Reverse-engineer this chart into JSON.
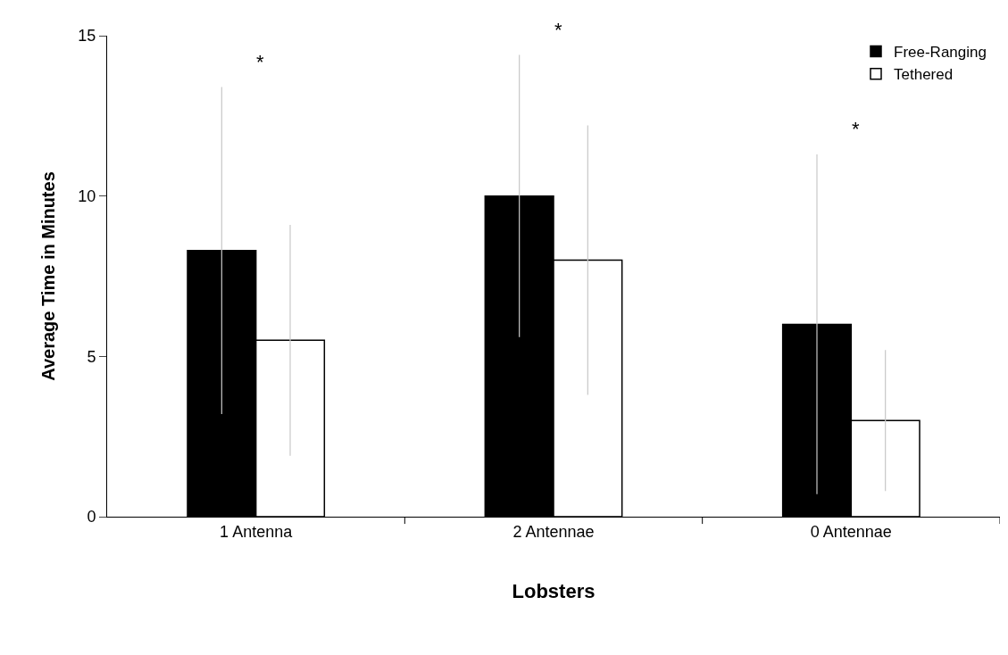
{
  "chart_data": {
    "type": "bar",
    "xlabel": "Lobsters",
    "ylabel": "Average Time in Minutes",
    "categories": [
      "1 Antenna",
      "2 Antennae",
      "0 Antennae"
    ],
    "series": [
      {
        "name": "Free-Ranging",
        "color": "#000000",
        "values": [
          8.3,
          10.0,
          6.0
        ],
        "errors": [
          5.1,
          4.4,
          5.3
        ]
      },
      {
        "name": "Tethered",
        "color": "#ffffff",
        "values": [
          5.5,
          8.0,
          3.0
        ],
        "errors": [
          3.6,
          4.2,
          2.2
        ]
      }
    ],
    "annotations": [
      "*",
      "*",
      "*"
    ],
    "ylim": [
      0,
      15
    ],
    "yticks": [
      0,
      5,
      10,
      15
    ],
    "legend": "top right"
  }
}
